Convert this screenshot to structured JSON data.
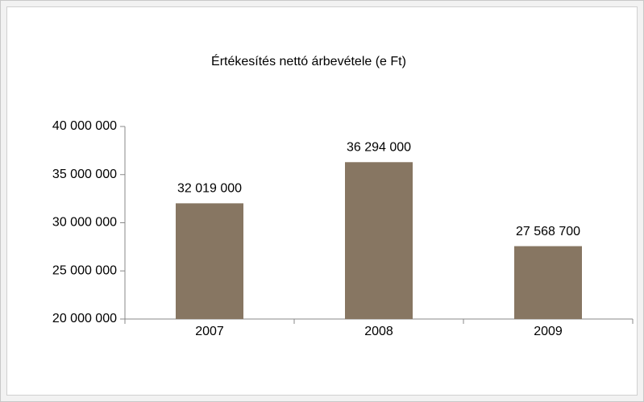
{
  "chart_data": {
    "type": "bar",
    "title": "Értékesítés nettó árbevétele (e Ft)",
    "categories": [
      "2007",
      "2008",
      "2009"
    ],
    "values": [
      32019000,
      36294000,
      27568700
    ],
    "value_labels": [
      "32 019 000",
      "36 294 000",
      "27 568 700"
    ],
    "color": "#877662",
    "ylim": [
      20000000,
      40000000
    ],
    "yticks": [
      {
        "value": 20000000,
        "label": "20 000 000"
      },
      {
        "value": 25000000,
        "label": "25 000 000"
      },
      {
        "value": 30000000,
        "label": "30 000 000"
      },
      {
        "value": 35000000,
        "label": "35 000 000"
      },
      {
        "value": 40000000,
        "label": "40 000 000"
      }
    ],
    "grid": false
  }
}
